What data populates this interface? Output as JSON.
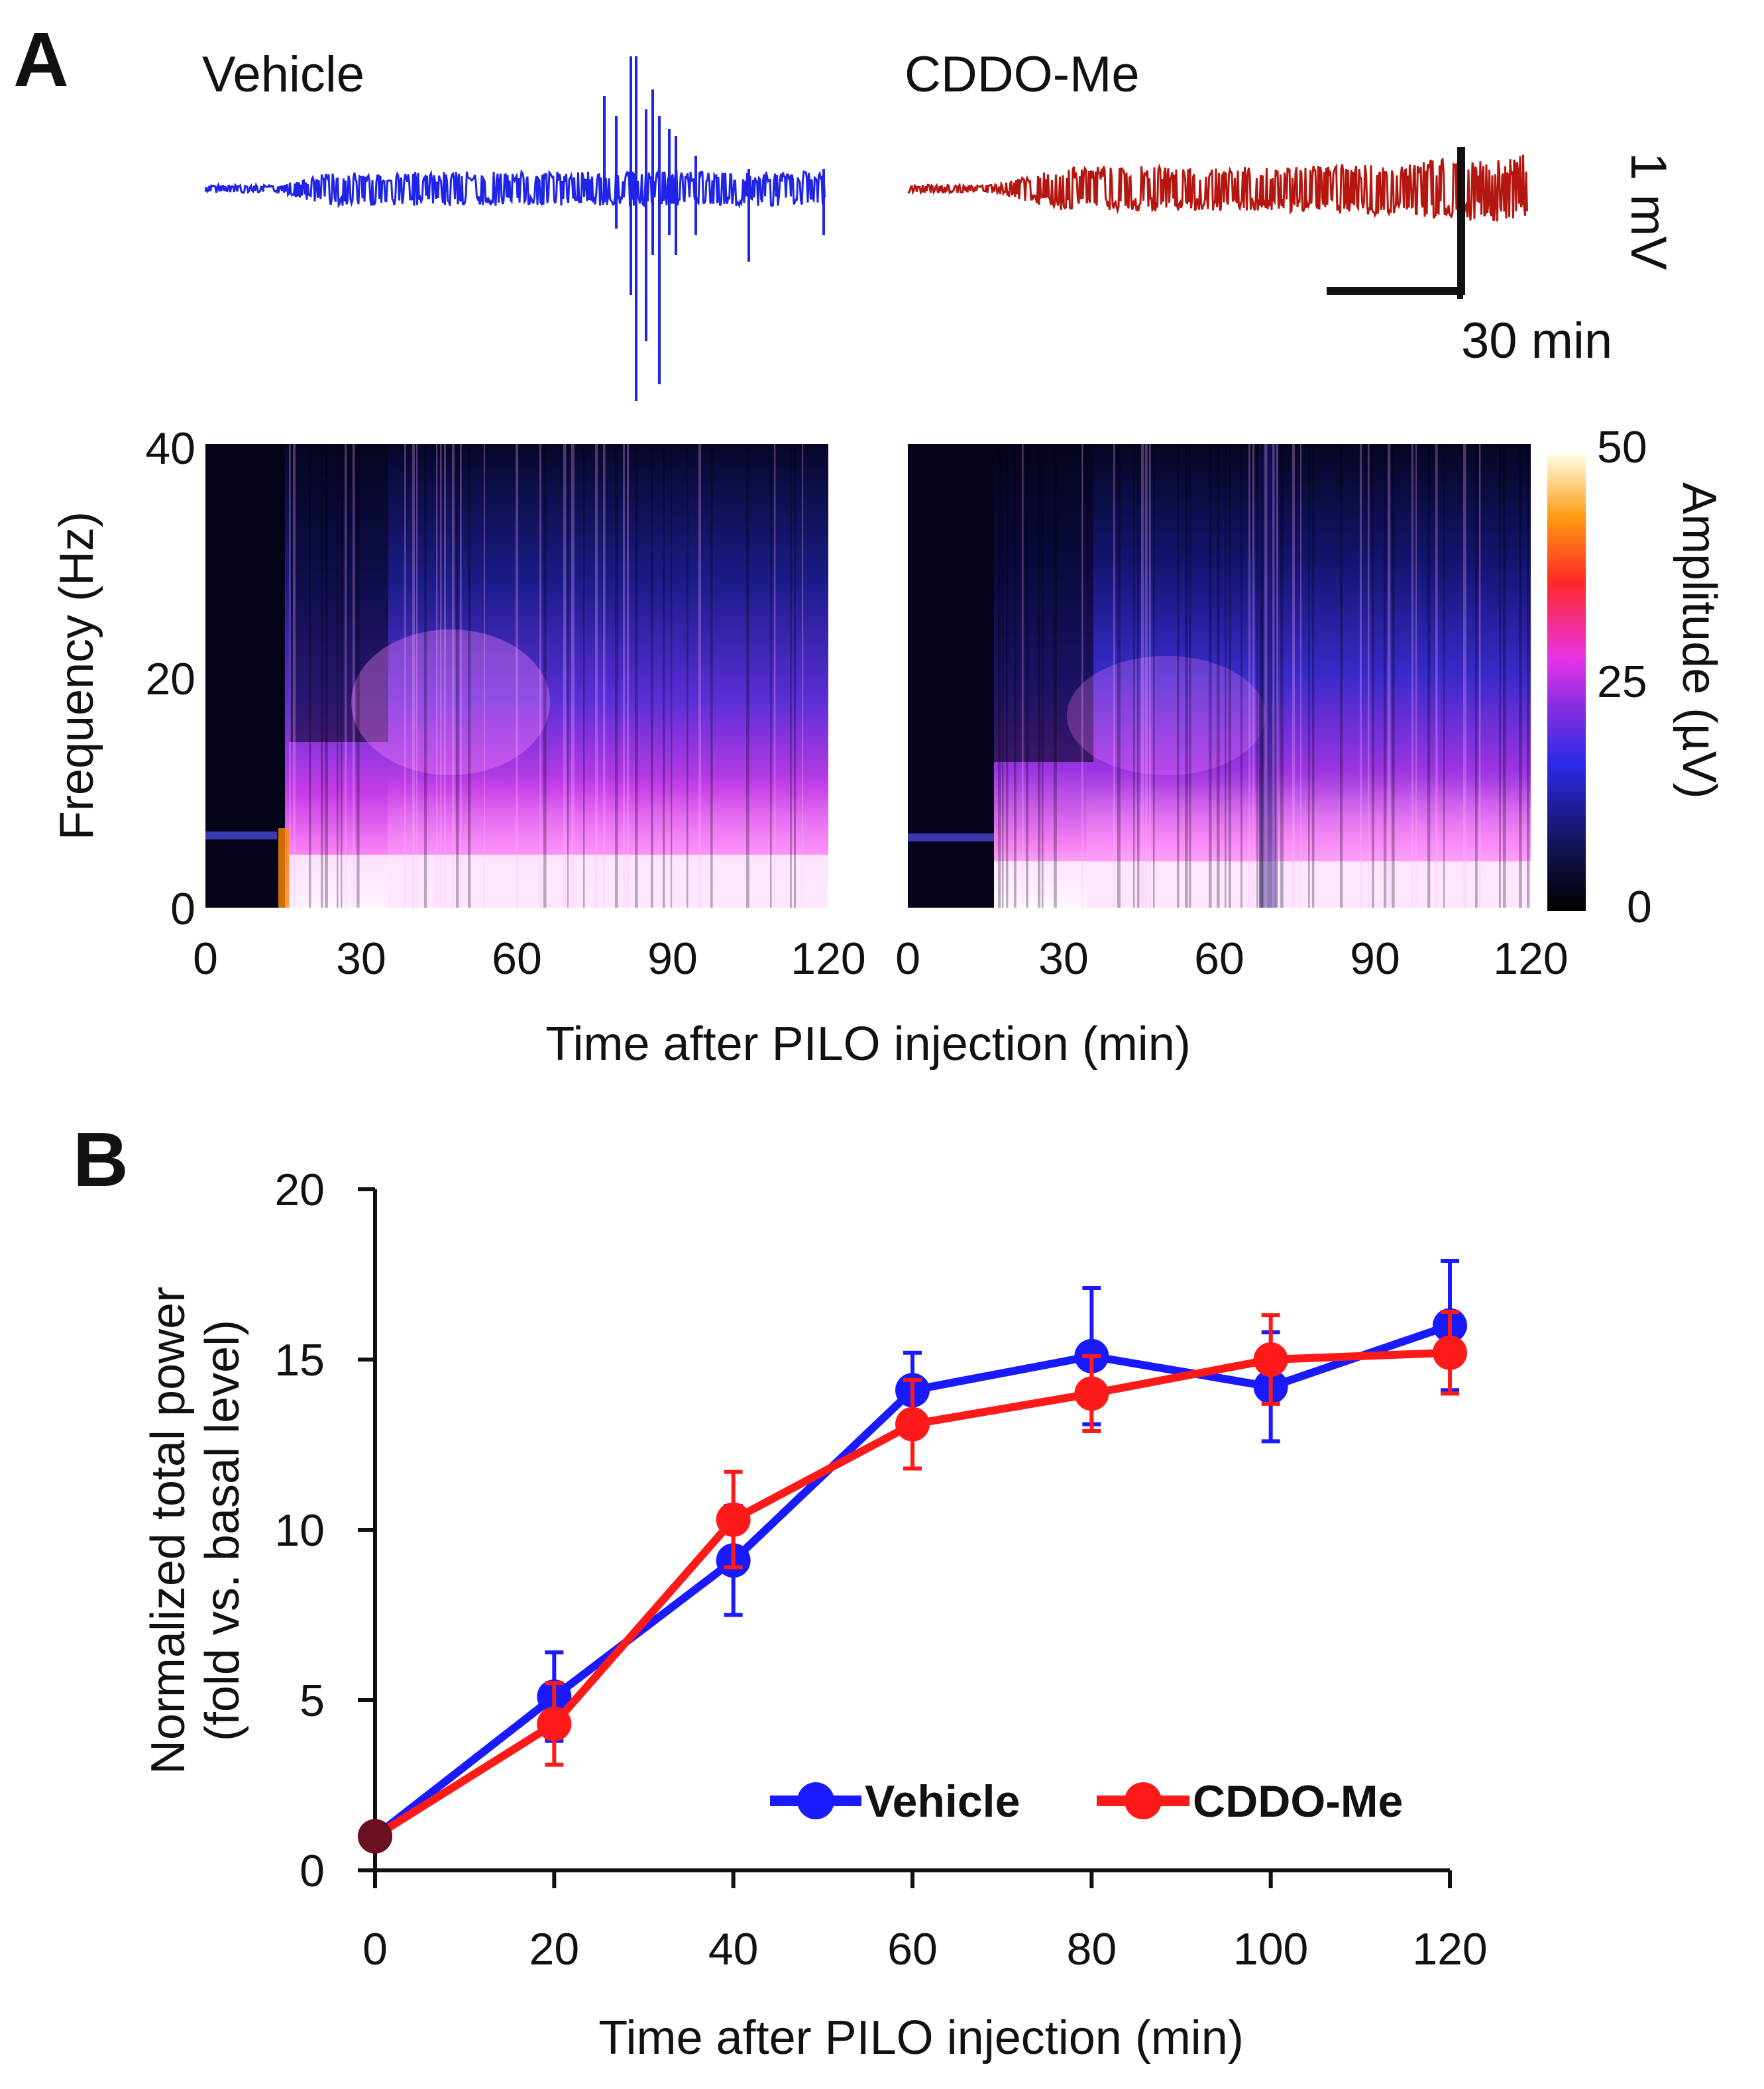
{
  "figure": {
    "panel_a_label": "A",
    "panel_b_label": "B"
  },
  "panel_a": {
    "traces": [
      {
        "name": "Vehicle",
        "color": "#1f24e6"
      },
      {
        "name": "CDDO-Me",
        "color": "#b5160f"
      }
    ],
    "scale_bar": {
      "amplitude": "1 mV",
      "time": "30 min"
    },
    "spectrogram": {
      "y_label": "Frequency (Hz)",
      "x_label": "Time after PILO injection (min)",
      "y_ticks": [
        "0",
        "20",
        "40"
      ],
      "x_ticks": [
        "0",
        "30",
        "60",
        "90",
        "120"
      ],
      "colorbar_label": "Amplitude (µV)",
      "colorbar_ticks": [
        "0",
        "25",
        "50"
      ]
    }
  },
  "chart_data": {
    "type": "line",
    "x": [
      0,
      20,
      40,
      60,
      80,
      100,
      120
    ],
    "series": [
      {
        "name": "Vehicle",
        "color": "#1a1aff",
        "values": [
          1.0,
          5.1,
          9.1,
          14.1,
          15.1,
          14.2,
          16.0
        ],
        "errors": [
          0.1,
          1.3,
          1.6,
          1.1,
          2.0,
          1.6,
          1.9
        ]
      },
      {
        "name": "CDDO-Me",
        "color": "#ff1a1a",
        "values": [
          1.0,
          4.3,
          10.3,
          13.1,
          14.0,
          15.0,
          15.2
        ],
        "errors": [
          0.1,
          1.2,
          1.4,
          1.3,
          1.1,
          1.3,
          1.2
        ]
      }
    ],
    "x_ticks": [
      "0",
      "20",
      "40",
      "60",
      "80",
      "100",
      "120"
    ],
    "y_ticks": [
      "0",
      "5",
      "10",
      "15",
      "20"
    ],
    "xlim": [
      0,
      120
    ],
    "ylim": [
      0,
      20
    ],
    "xlabel": "Time after PILO injection (min)",
    "ylabel_line1": "Normalized total power",
    "ylabel_line2": "(fold vs. basal level)",
    "legend_position": "bottom-right"
  }
}
